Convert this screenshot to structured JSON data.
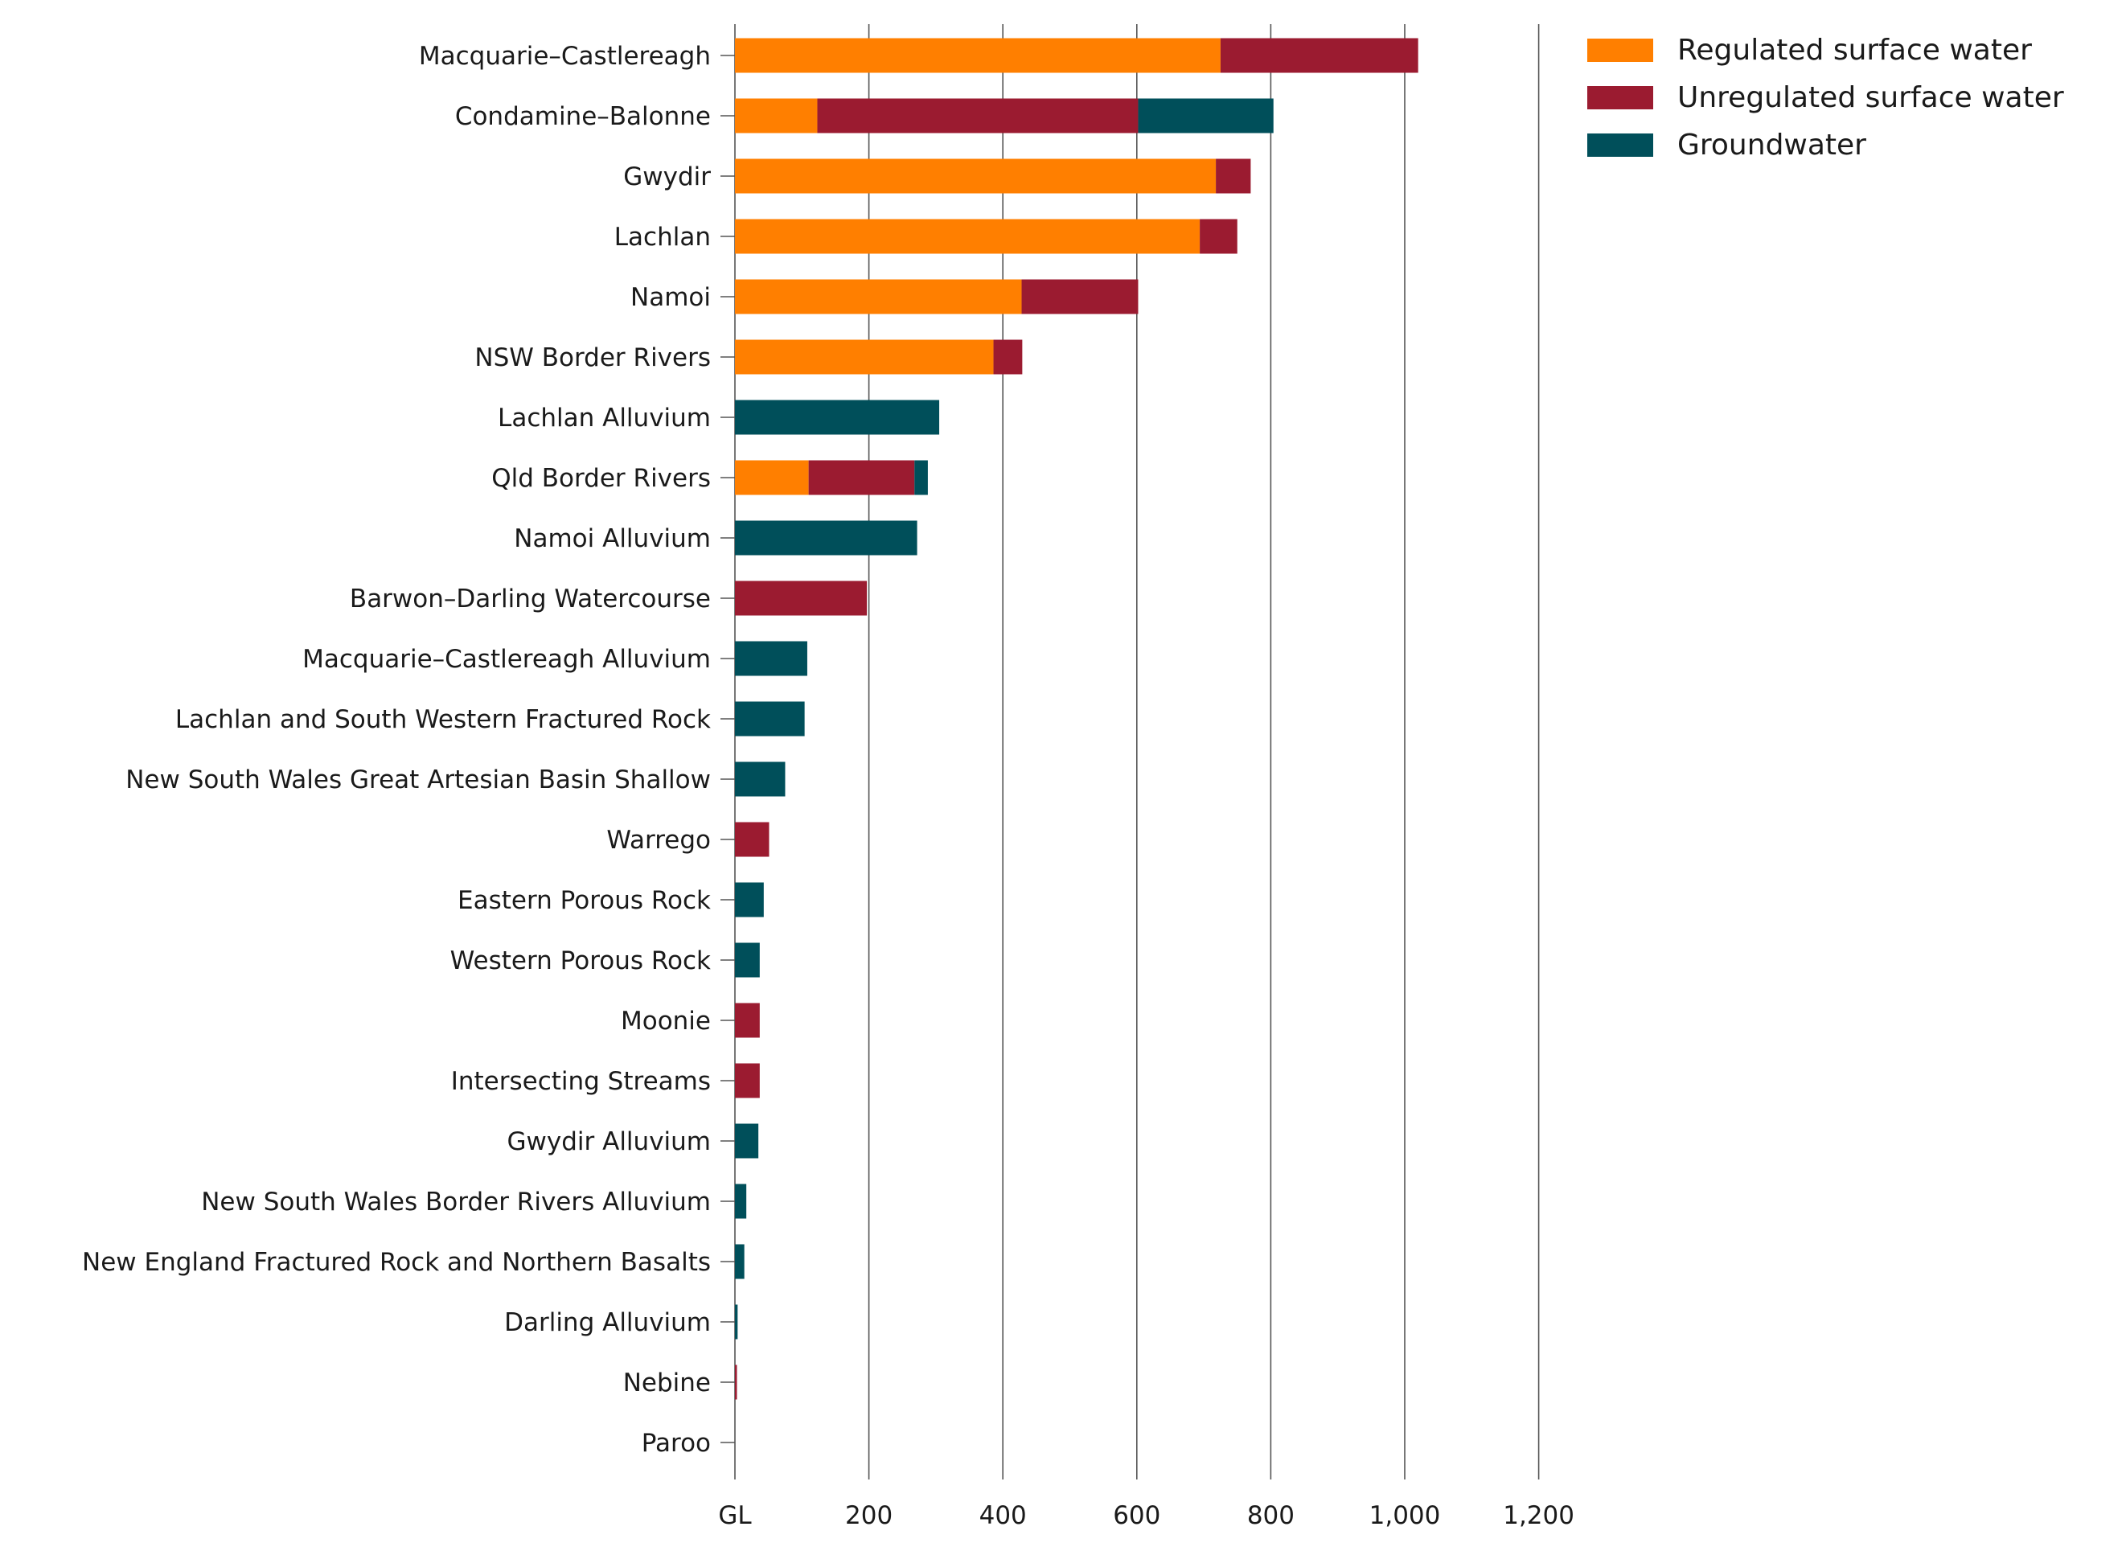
{
  "chart_data": {
    "type": "bar",
    "orientation": "horizontal",
    "stacked": true,
    "title": "",
    "xlabel": "",
    "ylabel": "",
    "x_unit_label": "GL",
    "xlim": [
      0,
      1200
    ],
    "xticks": [
      0,
      200,
      400,
      600,
      800,
      1000,
      1200
    ],
    "xtick_labels": [
      "GL",
      "200",
      "400",
      "600",
      "800",
      "1,000",
      "1,200"
    ],
    "grid": "vertical lines at major ticks",
    "legend_position": "top-right",
    "categories": [
      "Macquarie–Castlereagh",
      "Condamine–Balonne",
      "Gwydir",
      "Lachlan",
      "Namoi",
      "NSW Border Rivers",
      "Lachlan Alluvium",
      "Qld Border Rivers",
      "Namoi Alluvium",
      "Barwon–Darling Watercourse",
      "Macquarie–Castlereagh Alluvium",
      "Lachlan and South Western Fractured Rock",
      "New South Wales Great Artesian Basin Shallow",
      "Warrego",
      "Eastern Porous Rock",
      "Western Porous Rock",
      "Moonie",
      "Intersecting Streams",
      "Gwydir Alluvium",
      "New South Wales Border Rivers Alluvium",
      "New England Fractured Rock and Northern Basalts",
      "Darling Alluvium",
      "Nebine",
      "Paroo"
    ],
    "series": [
      {
        "name": "Regulated surface water",
        "color": "#ff7f00",
        "values": [
          725,
          123,
          718,
          694,
          428,
          386,
          0,
          110,
          0,
          0,
          0,
          0,
          0,
          0,
          0,
          0,
          0,
          0,
          0,
          0,
          0,
          0,
          0,
          0
        ]
      },
      {
        "name": "Unregulated surface water",
        "color": "#9b1b30",
        "values": [
          295,
          479,
          52,
          56,
          174,
          43,
          0,
          158,
          0,
          197,
          0,
          0,
          0,
          51,
          0,
          0,
          37,
          37,
          0,
          0,
          0,
          0,
          3,
          0
        ]
      },
      {
        "name": "Groundwater",
        "color": "#004f5a",
        "values": [
          0,
          202,
          0,
          0,
          0,
          0,
          305,
          20,
          272,
          0,
          108,
          104,
          75,
          0,
          43,
          37,
          0,
          0,
          35,
          17,
          14,
          4,
          0,
          0
        ]
      }
    ]
  }
}
